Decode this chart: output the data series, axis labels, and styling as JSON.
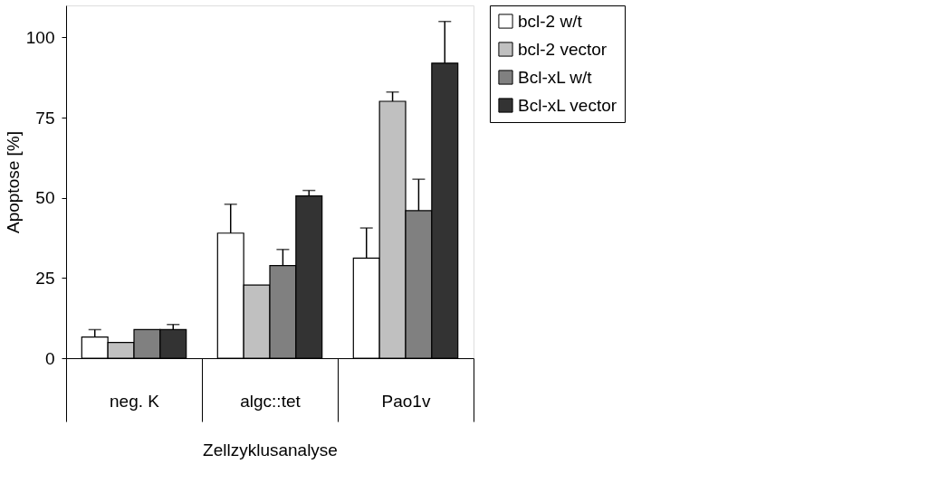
{
  "chart_data": {
    "type": "bar",
    "xlabel": "Zellzyklusanalyse",
    "ylabel": "Apoptose [%]",
    "categories": [
      "neg. K",
      "algc::tet",
      "Pao1v"
    ],
    "series": [
      {
        "name": "bcl-2 w/t",
        "color": "#ffffff",
        "values": [
          6.6,
          39.0,
          31.2
        ],
        "errors": [
          [
            6.6,
            8.9
          ],
          [
            39.0,
            48.0
          ],
          [
            31.2,
            40.6
          ]
        ]
      },
      {
        "name": "bcl-2 vector",
        "color": "#c0c0c0",
        "values": [
          4.9,
          22.8,
          80.1
        ],
        "errors": [
          null,
          null,
          [
            80.1,
            83.0
          ]
        ]
      },
      {
        "name": "Bcl-xL w/t",
        "color": "#808080",
        "values": [
          8.9,
          28.9,
          46.0
        ],
        "errors": [
          null,
          [
            28.9,
            33.9
          ],
          [
            46.0,
            55.8
          ]
        ]
      },
      {
        "name": "Bcl-xL vector",
        "color": "#333333",
        "values": [
          8.9,
          50.6,
          92.0
        ],
        "errors": [
          [
            8.9,
            10.5
          ],
          [
            50.6,
            52.3
          ],
          [
            92.0,
            105.0
          ]
        ]
      }
    ],
    "ylim": [
      0,
      110
    ],
    "yticks": [
      0,
      25,
      50,
      75,
      100
    ],
    "grid": false,
    "legend": "right"
  }
}
